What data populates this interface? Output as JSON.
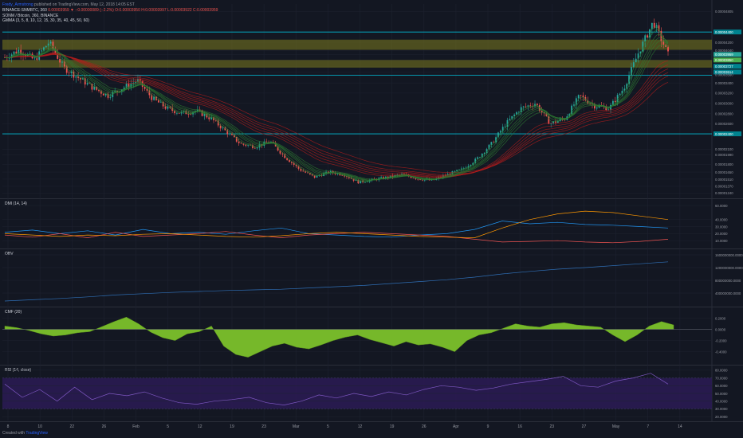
{
  "header": {
    "username": "Fredy_Armstrong",
    "published_text": "published on TradingView.com, May 12, 2018 14:05 EST",
    "symbol_line_prefix": "BINANCE:SNMBTC, 360",
    "symbol_line_values": "0.00003959 ▼ −0.00000089 (−2.2%) O:0.00003950 H:0.00003997 L:0.00003922 C:0.00003959",
    "pair_line": "SONM / Bitcoin, 360, BINANCE",
    "indicator_line": "GMMA (3, 5, 8, 10, 12, 15, 30, 35, 40, 45, 50, 60)"
  },
  "footer": {
    "created_with": "Created with",
    "brand": "TradingView"
  },
  "colors": {
    "background": "#131722",
    "grid": "#1e2230",
    "up": "#26a69a",
    "down": "#ef5350",
    "gmma_short": "#2e7d32",
    "gmma_long": "#b71c1c",
    "resistance_zone": "#7b7a1e",
    "support_line": "#00bcd4",
    "dmi_plus": "#2196f3",
    "dmi_minus": "#ef5350",
    "adx": "#ff9800",
    "obv": "#2f6fb6",
    "cmf": "#76b82a",
    "rsi": "#7e57c2",
    "rsi_band": "#2a1b52"
  },
  "chart_data": [
    {
      "type": "candlestick",
      "title": "SONM / Bitcoin, 360, BINANCE",
      "x": [
        "8",
        "10",
        "22",
        "26",
        "Feb",
        "5",
        "12",
        "19",
        "23",
        "Mar",
        "5",
        "12",
        "19",
        "26",
        "Apr",
        "9",
        "16",
        "23",
        "27",
        "May",
        "7",
        "14"
      ],
      "y_ticks": [
        "0.00004805",
        "0.00004400",
        "0.00004200",
        "0.00004040",
        "0.00003959",
        "0.00003850",
        "0.00003727",
        "0.00003614",
        "0.00003560",
        "0.00003400",
        "0.00003200",
        "0.00003000",
        "0.00002800",
        "0.00002600",
        "0.00002400",
        "0.00002100",
        "0.00001990",
        "0.00001800",
        "0.00001650",
        "0.00001510",
        "0.00001370",
        "0.00001240"
      ],
      "highlighted_levels": [
        "0.00004400",
        "0.00003959",
        "0.00003850",
        "0.00003727",
        "0.00003614",
        "0.00002400"
      ],
      "price_path": [
        3.9e-05,
        4.05e-05,
        3.85e-05,
        4.2e-05,
        3.7e-05,
        3.5e-05,
        3.3e-05,
        3.15e-05,
        3.3e-05,
        3.45e-05,
        3.1e-05,
        2.9e-05,
        2.8e-05,
        2.85e-05,
        2.7e-05,
        2.45e-05,
        2.2e-05,
        2.15e-05,
        2.25e-05,
        1.95e-05,
        1.7e-05,
        1.55e-05,
        1.65e-05,
        1.6e-05,
        1.45e-05,
        1.5e-05,
        1.55e-05,
        1.6e-05,
        1.52e-05,
        1.48e-05,
        1.6e-05,
        1.7e-05,
        1.9e-05,
        2.2e-05,
        2.6e-05,
        2.9e-05,
        3e-05,
        2.6e-05,
        2.7e-05,
        3.15e-05,
        2.95e-05,
        2.9e-05,
        3.3e-05,
        4e-05,
        4.6e-05,
        3.959e-05
      ],
      "resistance_zones": [
        [
          4.05e-05,
          4.25e-05
        ],
        [
          3.7e-05,
          3.85e-05
        ]
      ],
      "support_lines": [
        4.4e-05,
        3.55e-05,
        2.4e-05
      ],
      "last_price": "0.00003959"
    },
    {
      "type": "line",
      "title": "DMI (14, 14)",
      "y_ticks": [
        "60.0000",
        "40.0000",
        "30.0000",
        "20.0000",
        "10.0000"
      ],
      "series": [
        {
          "values": [
            22,
            25,
            20,
            24,
            18,
            26,
            20,
            22,
            19,
            24,
            28,
            20,
            18,
            16,
            15,
            18,
            20,
            26,
            38,
            34,
            36,
            33,
            32,
            30,
            28
          ]
        },
        {
          "values": [
            18,
            15,
            20,
            14,
            22,
            16,
            18,
            20,
            23,
            18,
            14,
            18,
            20,
            22,
            20,
            18,
            16,
            12,
            8,
            9,
            10,
            8,
            7,
            9,
            12
          ]
        },
        {
          "values": [
            20,
            18,
            16,
            18,
            17,
            19,
            20,
            18,
            16,
            15,
            17,
            20,
            22,
            20,
            18,
            16,
            15,
            14,
            28,
            40,
            48,
            52,
            50,
            45,
            40
          ]
        }
      ]
    },
    {
      "type": "line",
      "title": "OBV",
      "y_ticks": [
        "1600000000.0000",
        "1200000000.0000",
        "800000000.0000",
        "400000000.0000"
      ],
      "series": [
        {
          "values": [
            150000000,
            190000000,
            230000000,
            280000000,
            340000000,
            380000000,
            420000000,
            450000000,
            480000000,
            500000000,
            520000000,
            560000000,
            600000000,
            640000000,
            700000000,
            760000000,
            820000000,
            900000000,
            1000000000,
            1080000000,
            1150000000,
            1200000000,
            1260000000,
            1320000000,
            1380000000
          ]
        }
      ]
    },
    {
      "type": "area",
      "title": "CMF (20)",
      "y_ticks": [
        "0.2000",
        "0.0000",
        "-0.2000",
        "-0.4000"
      ],
      "series": [
        {
          "values": [
            0.06,
            0.03,
            -0.02,
            -0.08,
            -0.12,
            -0.1,
            -0.06,
            -0.04,
            0.05,
            0.14,
            0.22,
            0.1,
            -0.05,
            -0.15,
            -0.2,
            -0.08,
            -0.04,
            0.06,
            -0.3,
            -0.45,
            -0.5,
            -0.4,
            -0.3,
            -0.25,
            -0.32,
            -0.35,
            -0.28,
            -0.2,
            -0.14,
            -0.1,
            -0.18,
            -0.24,
            -0.3,
            -0.22,
            -0.28,
            -0.26,
            -0.32,
            -0.4,
            -0.2,
            -0.1,
            -0.06,
            0.02,
            0.1,
            0.06,
            0.04,
            0.1,
            0.12,
            0.08,
            0.06,
            0.04,
            -0.1,
            -0.22,
            -0.1,
            0.06,
            0.14,
            0.08
          ]
        }
      ]
    },
    {
      "type": "line",
      "title": "RSI (14, close)",
      "y_ticks": [
        "80.0000",
        "70.0000",
        "60.0000",
        "50.0000",
        "40.0000",
        "30.0000",
        "20.0000"
      ],
      "series": [
        {
          "values": [
            62,
            45,
            55,
            40,
            58,
            42,
            50,
            47,
            52,
            44,
            38,
            36,
            40,
            42,
            45,
            38,
            35,
            40,
            48,
            44,
            50,
            46,
            52,
            48,
            55,
            60,
            58,
            54,
            57,
            62,
            65,
            68,
            72,
            60,
            58,
            66,
            70,
            76,
            62
          ]
        }
      ],
      "bands": [
        30,
        70
      ]
    }
  ]
}
